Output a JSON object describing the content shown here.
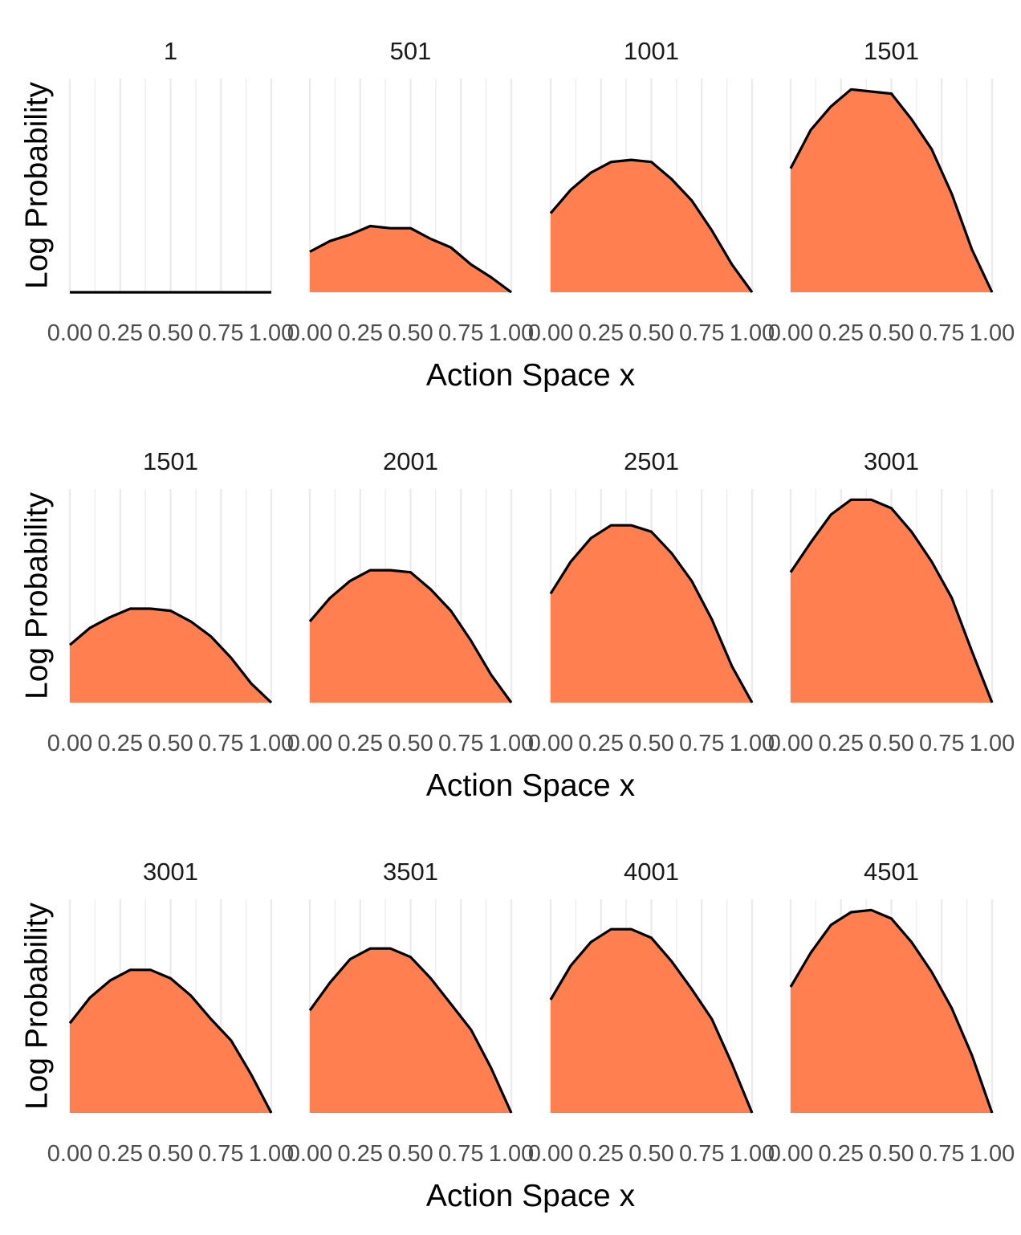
{
  "chart_data": {
    "type": "area",
    "layout": "3 rows x 4 facets",
    "xlabel": "Action Space x",
    "ylabel": "Log Probability",
    "x_ticks": [
      "0.00",
      "0.25",
      "0.50",
      "0.75",
      "1.00"
    ],
    "xlim": [
      0,
      1
    ],
    "ylim": [
      0,
      1
    ],
    "y_tick_labels_shown": false,
    "grid": "vertical major and minor gridlines",
    "fill_color": "#FF7F50",
    "line_color": "#000000",
    "grid_color": "#EBEBEB",
    "x": [
      0.0,
      0.1,
      0.2,
      0.3,
      0.4,
      0.5,
      0.6,
      0.7,
      0.8,
      0.9,
      1.0
    ],
    "rows": [
      {
        "xlabel": "Action Space x",
        "ylabel": "Log Probability",
        "facets": [
          {
            "title": "1",
            "values": [
              0.0,
              0.0,
              0.0,
              0.0,
              0.0,
              0.0,
              0.0,
              0.0,
              0.0,
              0.0,
              0.0
            ]
          },
          {
            "title": "501",
            "values": [
              0.19,
              0.24,
              0.27,
              0.31,
              0.3,
              0.3,
              0.25,
              0.21,
              0.13,
              0.07,
              0.0
            ]
          },
          {
            "title": "1001",
            "values": [
              0.37,
              0.48,
              0.56,
              0.61,
              0.62,
              0.61,
              0.53,
              0.43,
              0.29,
              0.13,
              0.0
            ]
          },
          {
            "title": "1501",
            "values": [
              0.58,
              0.76,
              0.87,
              0.95,
              0.94,
              0.93,
              0.81,
              0.67,
              0.46,
              0.2,
              0.0
            ]
          }
        ]
      },
      {
        "xlabel": "Action Space x",
        "ylabel": "Log Probability",
        "facets": [
          {
            "title": "1501",
            "values": [
              0.27,
              0.35,
              0.4,
              0.44,
              0.44,
              0.43,
              0.38,
              0.31,
              0.21,
              0.09,
              0.0
            ]
          },
          {
            "title": "2001",
            "values": [
              0.38,
              0.49,
              0.57,
              0.62,
              0.62,
              0.61,
              0.53,
              0.43,
              0.29,
              0.13,
              0.0
            ]
          },
          {
            "title": "2501",
            "values": [
              0.51,
              0.66,
              0.77,
              0.83,
              0.83,
              0.8,
              0.7,
              0.57,
              0.39,
              0.17,
              0.0
            ]
          },
          {
            "title": "3001",
            "values": [
              0.61,
              0.75,
              0.88,
              0.95,
              0.95,
              0.91,
              0.8,
              0.66,
              0.49,
              0.24,
              0.0
            ]
          }
        ]
      },
      {
        "xlabel": "Action Space x",
        "ylabel": "Log Probability",
        "facets": [
          {
            "title": "3001",
            "values": [
              0.42,
              0.54,
              0.62,
              0.67,
              0.67,
              0.63,
              0.55,
              0.44,
              0.34,
              0.18,
              0.0
            ]
          },
          {
            "title": "3501",
            "values": [
              0.48,
              0.61,
              0.72,
              0.77,
              0.77,
              0.73,
              0.63,
              0.51,
              0.39,
              0.21,
              0.0
            ]
          },
          {
            "title": "4001",
            "values": [
              0.53,
              0.69,
              0.8,
              0.86,
              0.86,
              0.82,
              0.71,
              0.58,
              0.44,
              0.23,
              0.0
            ]
          },
          {
            "title": "4501",
            "values": [
              0.59,
              0.75,
              0.88,
              0.94,
              0.95,
              0.91,
              0.8,
              0.66,
              0.49,
              0.27,
              0.0
            ]
          }
        ]
      }
    ]
  }
}
